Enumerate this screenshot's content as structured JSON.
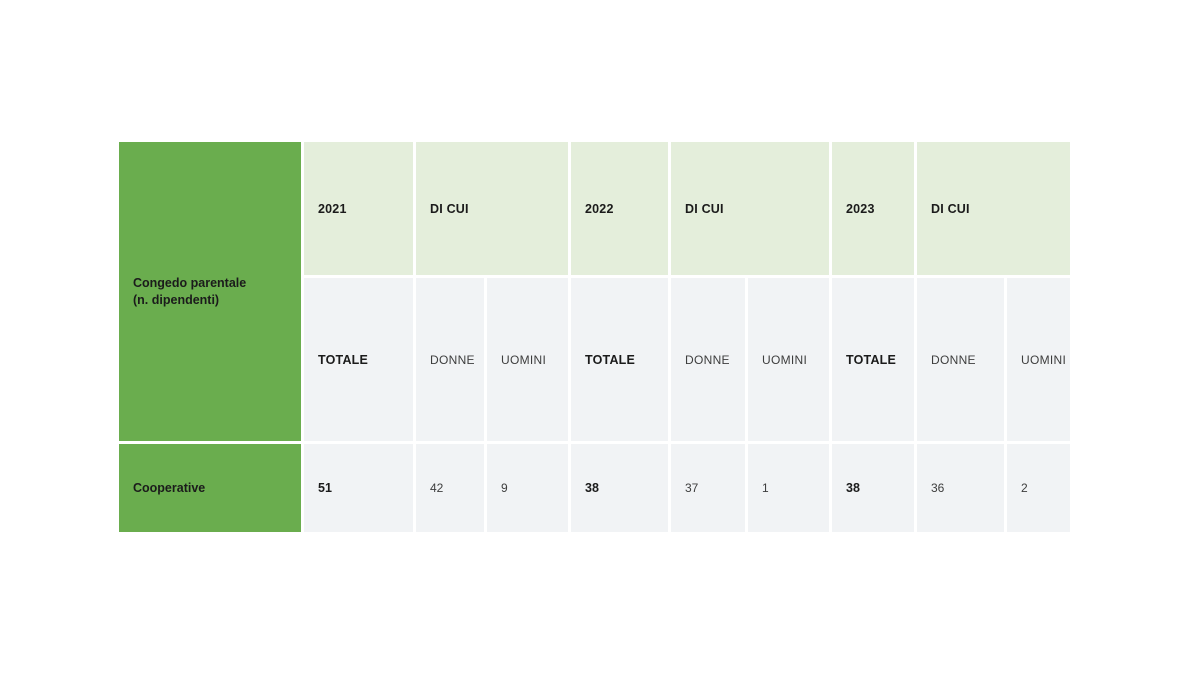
{
  "colors": {
    "green": "#6aad4e",
    "header_light_green": "#e4eedb",
    "cell_gray": "#f1f3f5",
    "text_dark": "#1b1b1b",
    "text_regular": "#3d3d3d"
  },
  "table": {
    "corner_header": "Congedo parentale\n(n. dipendenti)",
    "year_groups": [
      {
        "year": "2021",
        "di_cui": "DI CUI"
      },
      {
        "year": "2022",
        "di_cui": "DI CUI"
      },
      {
        "year": "2023",
        "di_cui": "DI CUI"
      }
    ],
    "sub_headers": [
      {
        "label": "TOTALE"
      },
      {
        "label": "DONNE"
      },
      {
        "label": "UOMINI"
      },
      {
        "label": "TOTALE"
      },
      {
        "label": "DONNE"
      },
      {
        "label": "UOMINI"
      },
      {
        "label": "TOTALE"
      },
      {
        "label": "DONNE"
      },
      {
        "label": "UOMINI"
      }
    ],
    "rows": [
      {
        "label": "Cooperative",
        "values": [
          "51",
          "42",
          "9",
          "38",
          "37",
          "1",
          "38",
          "36",
          "2"
        ]
      }
    ]
  }
}
